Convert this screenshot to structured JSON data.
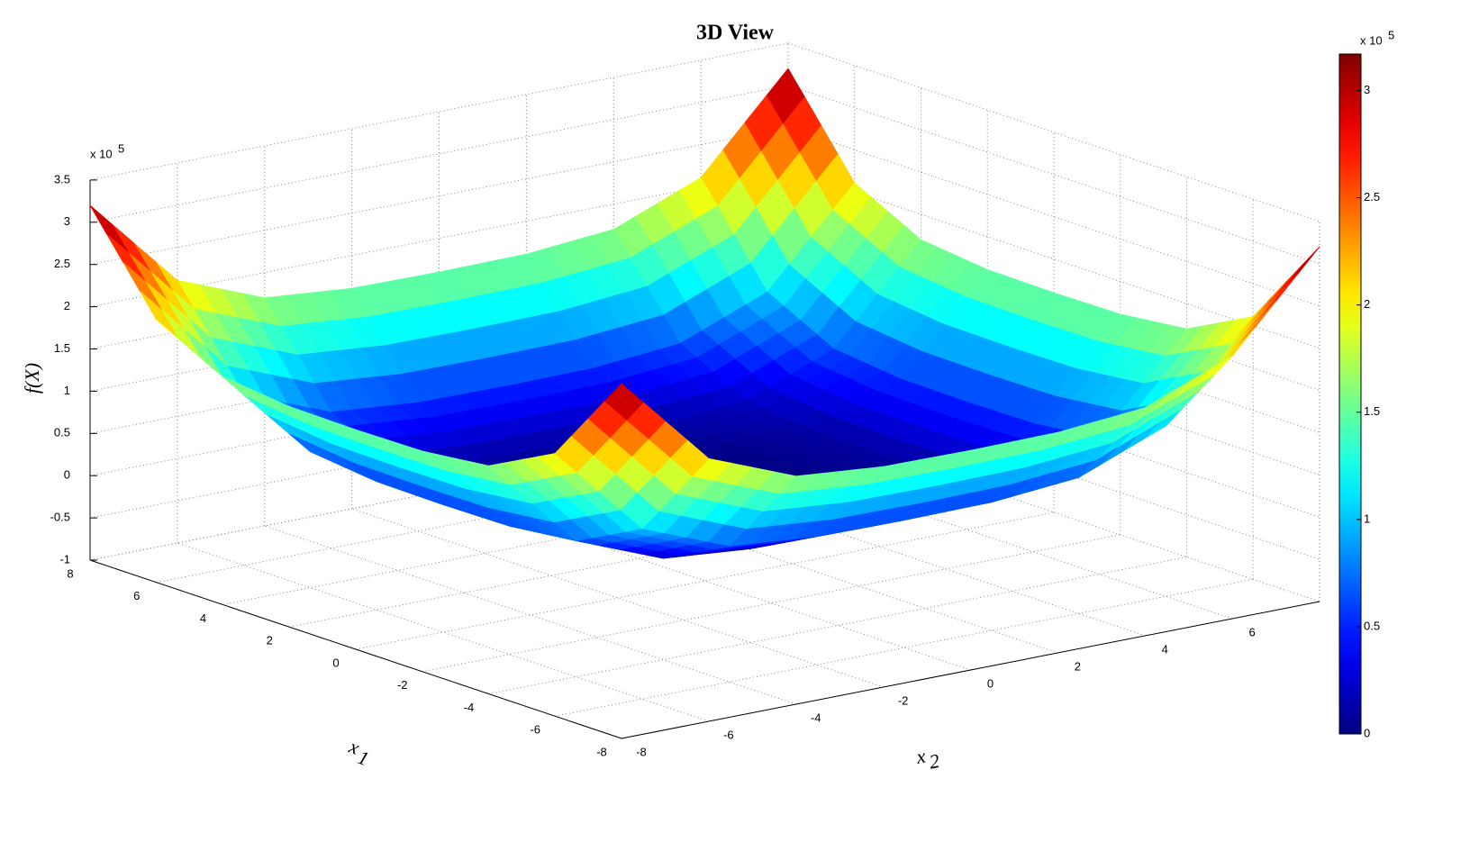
{
  "chart_data": {
    "type": "surface",
    "title": "3D View",
    "xlabel": {
      "base": "x",
      "sub": "1"
    },
    "ylabel": {
      "base": "x",
      "sub": "2"
    },
    "zlabel": "f(X)",
    "zexponent": {
      "base": "x 10",
      "power": "5"
    },
    "colorbar_exponent": {
      "base": "x 10",
      "power": "5"
    },
    "colormap": "jet",
    "grid": true,
    "x1": [
      -8,
      -6,
      -4,
      -2,
      0,
      2,
      4,
      6,
      8
    ],
    "x2": [
      -8,
      -6,
      -4,
      -2,
      0,
      2,
      4,
      6,
      8
    ],
    "z": [
      [
        3.2,
        2.11,
        1.7,
        1.61,
        1.6,
        1.61,
        1.7,
        2.11,
        3.2
      ],
      [
        2.11,
        1.02,
        0.61,
        0.52,
        0.51,
        0.52,
        0.61,
        1.02,
        2.11
      ],
      [
        1.7,
        0.61,
        0.2,
        0.11,
        0.1,
        0.11,
        0.2,
        0.61,
        1.7
      ],
      [
        1.61,
        0.52,
        0.11,
        0.02,
        0.01,
        0.02,
        0.11,
        0.52,
        1.61
      ],
      [
        1.6,
        0.51,
        0.1,
        0.01,
        0,
        0.01,
        0.1,
        0.51,
        1.6
      ],
      [
        1.61,
        0.52,
        0.11,
        0.02,
        0.01,
        0.02,
        0.11,
        0.52,
        1.61
      ],
      [
        1.7,
        0.61,
        0.2,
        0.11,
        0.1,
        0.11,
        0.2,
        0.61,
        1.7
      ],
      [
        2.11,
        1.02,
        0.61,
        0.52,
        0.51,
        0.52,
        0.61,
        1.02,
        2.11
      ],
      [
        3.2,
        2.11,
        1.7,
        1.61,
        1.6,
        1.61,
        1.7,
        2.11,
        3.2
      ]
    ],
    "xlim": [
      -8,
      8
    ],
    "ylim": [
      -8,
      8
    ],
    "zlim": [
      -1,
      3.5
    ],
    "xticks": [
      -8,
      -6,
      -4,
      -2,
      0,
      2,
      4,
      6,
      8
    ],
    "yticks": [
      -8,
      -6,
      -4,
      -2,
      0,
      2,
      4,
      6
    ],
    "zticks": [
      -1,
      -0.5,
      0,
      0.5,
      1,
      1.5,
      2,
      2.5,
      3,
      3.5
    ],
    "clim": [
      0,
      3.17
    ],
    "cticks": [
      0,
      0.5,
      1,
      1.5,
      2,
      2.5,
      3
    ]
  }
}
